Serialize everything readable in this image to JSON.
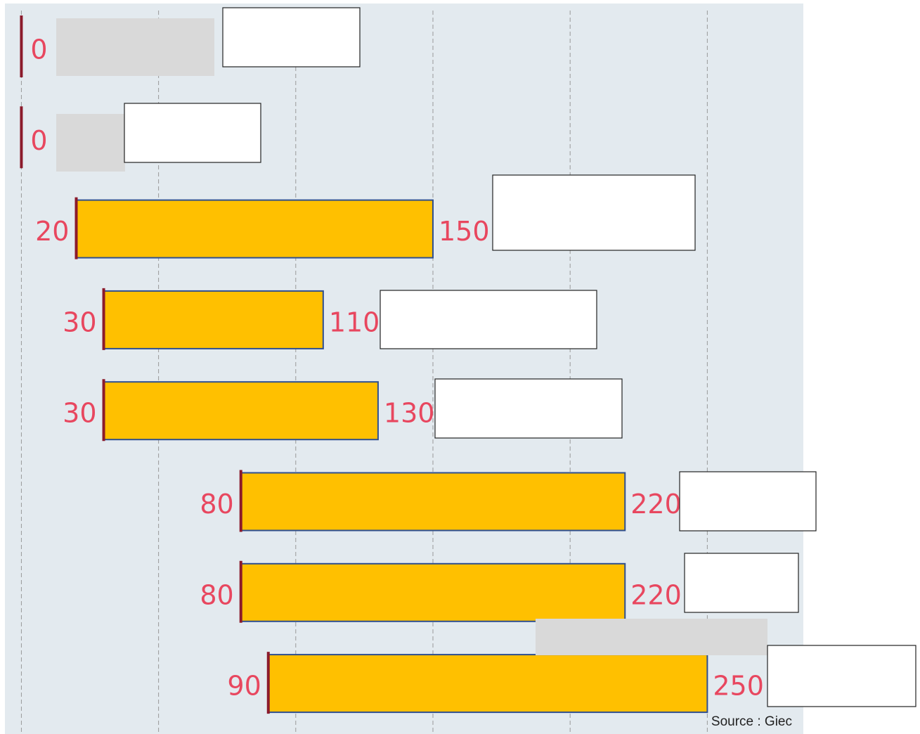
{
  "chart_data": {
    "type": "range-bar",
    "series": [
      {
        "name": null,
        "color": "#ffc000",
        "low": [
          0,
          0,
          20,
          30,
          30,
          80,
          80,
          90
        ],
        "high": [
          null,
          null,
          150,
          110,
          130,
          220,
          220,
          250
        ]
      }
    ],
    "xlim": [
      -6,
      285
    ],
    "xticks": [
      0,
      50,
      100,
      150,
      200,
      250
    ],
    "grid": true,
    "source": "Source : Giec"
  }
}
